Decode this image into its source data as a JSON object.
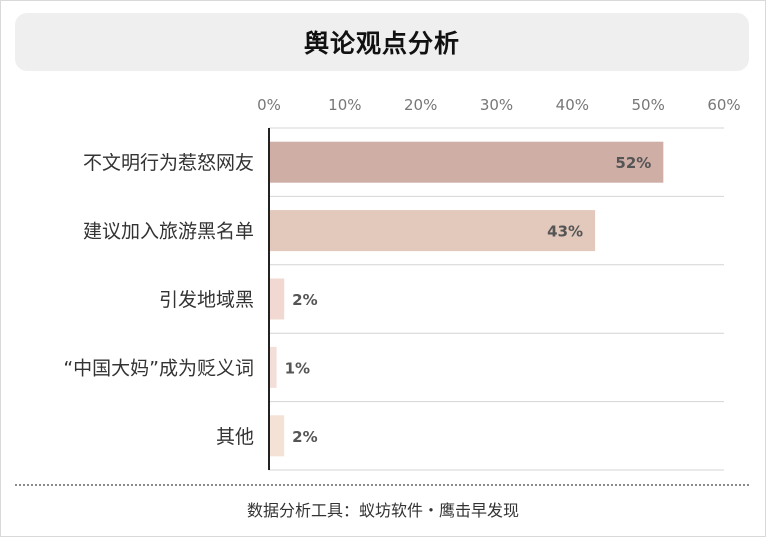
{
  "chart_data": {
    "type": "bar",
    "orientation": "horizontal",
    "title": "舆论观点分析",
    "categories": [
      "不文明行为惹怒网友",
      "建议加入旅游黑名单",
      "引发地域黑",
      "“中国大妈”成为贬义词",
      "其他"
    ],
    "values": [
      52,
      43,
      2,
      1,
      2
    ],
    "value_labels": [
      "52%",
      "43%",
      "2%",
      "1%",
      "2%"
    ],
    "xlim": [
      0,
      60
    ],
    "ticks": [
      0,
      10,
      20,
      30,
      40,
      50,
      60
    ],
    "tick_labels": [
      "0%",
      "10%",
      "20%",
      "30%",
      "40%",
      "50%",
      "60%"
    ],
    "axis_position": "top",
    "grid": true,
    "colors": [
      "#cfaea6",
      "#e3c8bc",
      "#f1d8d0",
      "#f3dfd8",
      "#f5e2d6"
    ]
  },
  "footer": "数据分析工具：蚁坊软件・鹰击早发现"
}
